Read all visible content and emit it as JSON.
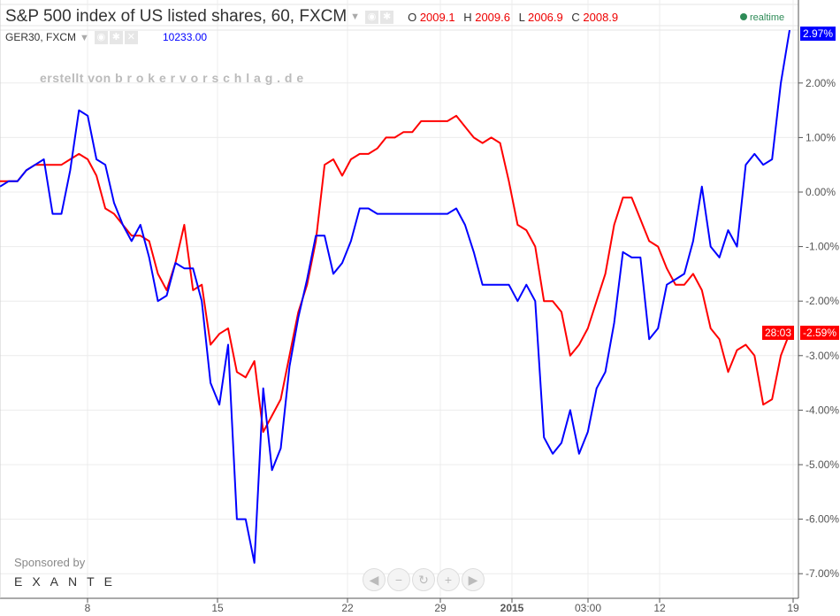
{
  "header": {
    "title": "S&P 500 index of US listed shares, 60, FXCM",
    "ohlc": [
      {
        "k": "O",
        "v": "2009.1"
      },
      {
        "k": "H",
        "v": "2009.6"
      },
      {
        "k": "L",
        "v": "2006.9"
      },
      {
        "k": "C",
        "v": "2008.9"
      }
    ],
    "compare_symbol": "GER30, FXCM",
    "compare_value": "10233.00",
    "watermark": "erstellt von b r o k e r v o r s c h l a g . d e",
    "realtime": "realtime"
  },
  "sponsor": {
    "label": "Sponsored by",
    "brand": "EXANTE"
  },
  "nav_buttons": [
    "scroll-left",
    "zoom-out",
    "reset",
    "zoom-in",
    "scroll-right"
  ],
  "price_labels": {
    "blue": "2.97%",
    "red": "-2.59%",
    "countdown": "28:03"
  },
  "colors": {
    "sp500": "#ff0000",
    "ger30": "#0000ff",
    "grid": "#ececec"
  },
  "chart_data": {
    "type": "line",
    "ylabel": "",
    "ylim": [
      -7.5,
      3.1
    ],
    "y_ticks": [
      "2.00%",
      "1.00%",
      "0.00%",
      "-1.00%",
      "-2.00%",
      "-3.00%",
      "-4.00%",
      "-5.00%",
      "-6.00%",
      "-7.00%"
    ],
    "y_tick_values": [
      2,
      1,
      0,
      -1,
      -2,
      -3,
      -4,
      -5,
      -6,
      -7
    ],
    "x_ticks": [
      "8",
      "15",
      "22",
      "29",
      "2015",
      "03:00",
      "12",
      "19"
    ],
    "grid": true,
    "series": [
      {
        "name": "S&P 500 index of US listed shares, 60, FXCM",
        "color": "#ff0000",
        "values": [
          0.2,
          0.2,
          0.2,
          0.4,
          0.5,
          0.5,
          0.5,
          0.5,
          0.6,
          0.7,
          0.6,
          0.3,
          -0.3,
          -0.4,
          -0.6,
          -0.8,
          -0.8,
          -0.9,
          -1.5,
          -1.8,
          -1.3,
          -0.6,
          -1.8,
          -1.7,
          -2.8,
          -2.6,
          -2.5,
          -3.3,
          -3.4,
          -3.1,
          -4.4,
          -4.1,
          -3.8,
          -3.0,
          -2.2,
          -1.7,
          -0.9,
          0.5,
          0.6,
          0.3,
          0.6,
          0.7,
          0.7,
          0.8,
          1.0,
          1.0,
          1.1,
          1.1,
          1.3,
          1.3,
          1.3,
          1.3,
          1.4,
          1.2,
          1.0,
          0.9,
          1.0,
          0.9,
          0.2,
          -0.6,
          -0.7,
          -1.0,
          -2.0,
          -2.0,
          -2.2,
          -3.0,
          -2.8,
          -2.5,
          -2.0,
          -1.5,
          -0.6,
          -0.1,
          -0.1,
          -0.5,
          -0.9,
          -1.0,
          -1.4,
          -1.7,
          -1.7,
          -1.5,
          -1.8,
          -2.5,
          -2.7,
          -3.3,
          -2.9,
          -2.8,
          -3.0,
          -3.9,
          -3.8,
          -3.0,
          -2.59
        ]
      },
      {
        "name": "GER30, FXCM",
        "color": "#0000ff",
        "values": [
          0.1,
          0.2,
          0.2,
          0.4,
          0.5,
          0.6,
          -0.4,
          -0.4,
          0.4,
          1.5,
          1.4,
          0.6,
          0.5,
          -0.2,
          -0.6,
          -0.9,
          -0.6,
          -1.2,
          -2.0,
          -1.9,
          -1.3,
          -1.4,
          -1.4,
          -2.0,
          -3.5,
          -3.9,
          -2.8,
          -6.0,
          -6.0,
          -6.8,
          -3.6,
          -5.1,
          -4.7,
          -3.2,
          -2.3,
          -1.6,
          -0.8,
          -0.8,
          -1.5,
          -1.3,
          -0.9,
          -0.3,
          -0.3,
          -0.4,
          -0.4,
          -0.4,
          -0.4,
          -0.4,
          -0.4,
          -0.4,
          -0.4,
          -0.4,
          -0.3,
          -0.6,
          -1.1,
          -1.7,
          -1.7,
          -1.7,
          -1.7,
          -2.0,
          -1.7,
          -2.0,
          -4.5,
          -4.8,
          -4.6,
          -4.0,
          -4.8,
          -4.4,
          -3.6,
          -3.3,
          -2.4,
          -1.1,
          -1.2,
          -1.2,
          -2.7,
          -2.5,
          -1.7,
          -1.6,
          -1.5,
          -0.9,
          0.1,
          -1.0,
          -1.2,
          -0.7,
          -1.0,
          0.5,
          0.7,
          0.5,
          0.6,
          2.0,
          2.97
        ]
      }
    ]
  }
}
